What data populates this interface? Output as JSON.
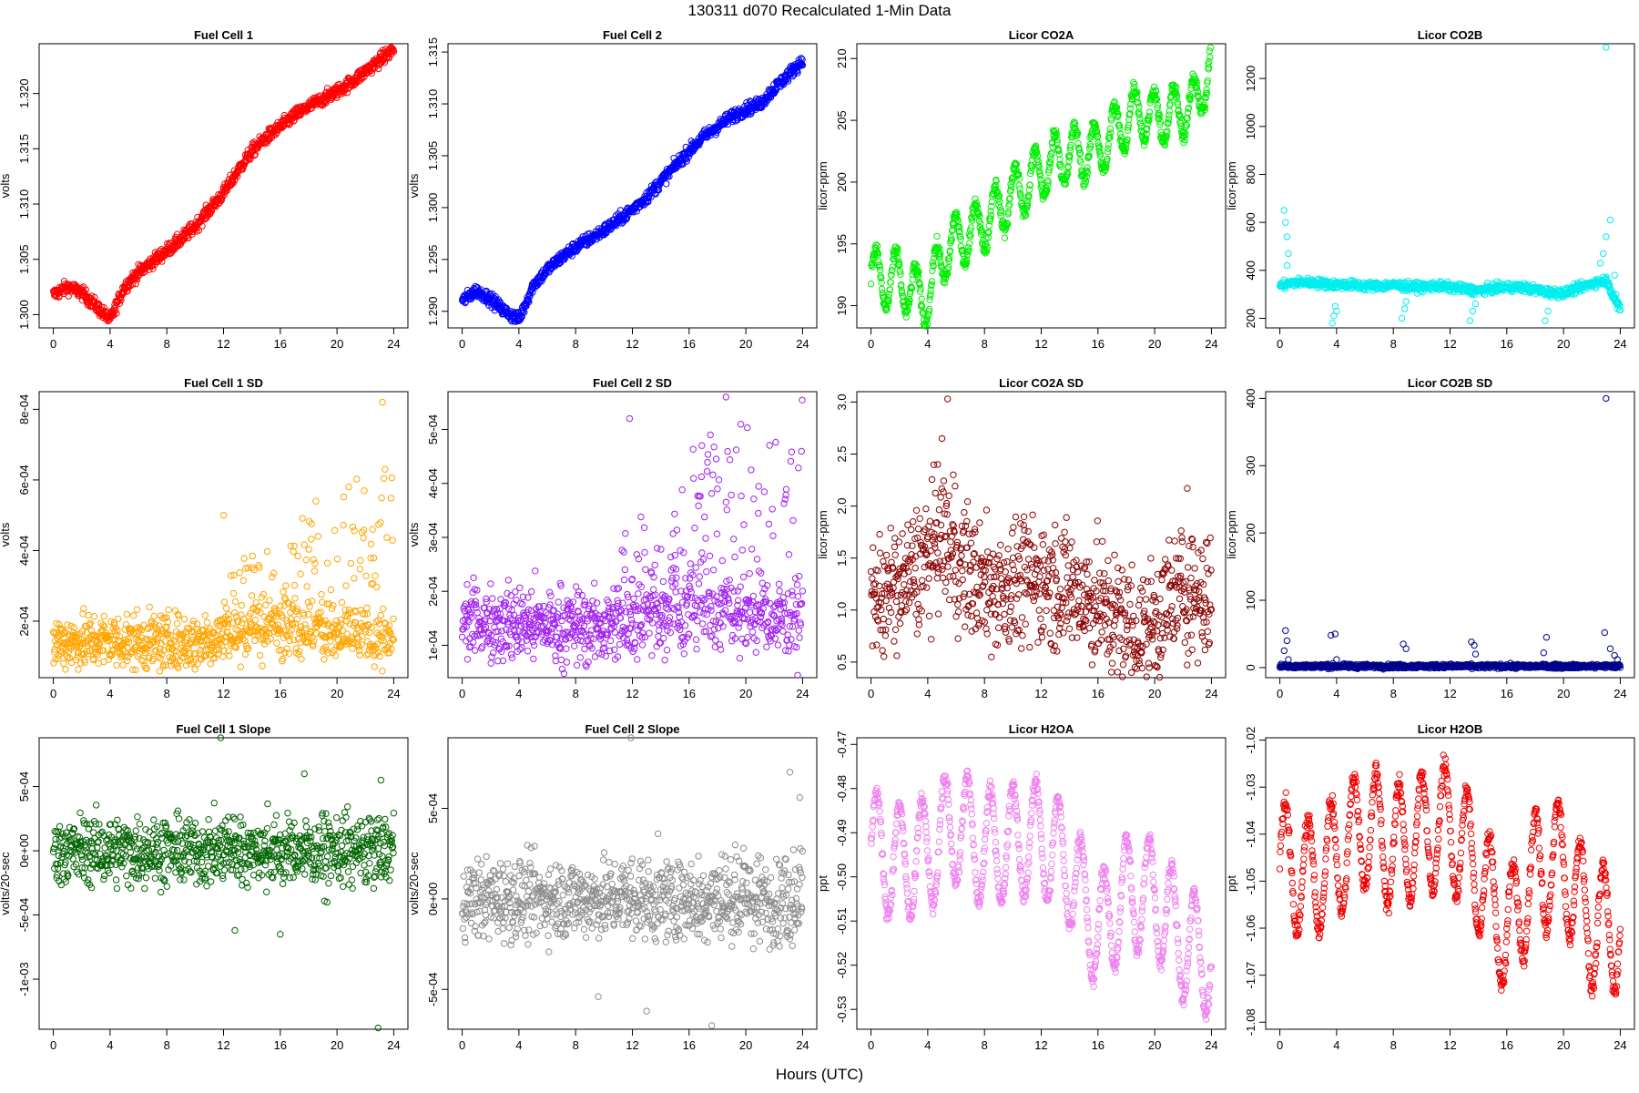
{
  "figure": {
    "title": "130311    d070    Recalculated 1-Min Data",
    "xlabel": "Hours (UTC)"
  },
  "chart_data": [
    {
      "type": "scatter",
      "title": "Fuel Cell 1",
      "xlabel": "",
      "ylabel": "volts",
      "color": "#ff0000",
      "xlim": [
        -1,
        25
      ],
      "ylim": [
        1.2988,
        1.3245
      ],
      "xticks": [
        0,
        4,
        8,
        12,
        16,
        20,
        24
      ],
      "yticks": [
        1.3,
        1.305,
        1.31,
        1.315,
        1.32
      ],
      "ytick_labels": [
        "1.300",
        "1.305",
        "1.310",
        "1.315",
        "1.320"
      ],
      "x": [
        0,
        1,
        2,
        3,
        4,
        5,
        6,
        7,
        8,
        9,
        10,
        11,
        12,
        13,
        14,
        15,
        16,
        17,
        18,
        19,
        20,
        21,
        22,
        23,
        24
      ],
      "y": [
        1.3018,
        1.3025,
        1.302,
        1.3008,
        1.2995,
        1.3025,
        1.3038,
        1.3048,
        1.3058,
        1.3068,
        1.308,
        1.3095,
        1.311,
        1.313,
        1.3148,
        1.316,
        1.317,
        1.318,
        1.3188,
        1.3195,
        1.3202,
        1.321,
        1.322,
        1.323,
        1.324
      ],
      "spread": 0.0003
    },
    {
      "type": "scatter",
      "title": "Fuel Cell 2",
      "xlabel": "",
      "ylabel": "volts",
      "color": "#0000ff",
      "xlim": [
        -1,
        25
      ],
      "ylim": [
        1.2884,
        1.3158
      ],
      "xticks": [
        0,
        4,
        8,
        12,
        16,
        20,
        24
      ],
      "yticks": [
        1.29,
        1.295,
        1.3,
        1.305,
        1.31,
        1.315
      ],
      "ytick_labels": [
        "1.290",
        "1.295",
        "1.300",
        "1.305",
        "1.310",
        "1.315"
      ],
      "x": [
        0,
        1,
        2,
        3,
        4,
        5,
        6,
        7,
        8,
        9,
        10,
        11,
        12,
        13,
        14,
        15,
        16,
        17,
        18,
        19,
        20,
        21,
        22,
        23,
        24
      ],
      "y": [
        1.291,
        1.292,
        1.2912,
        1.29,
        1.2892,
        1.2925,
        1.294,
        1.2952,
        1.2962,
        1.297,
        1.2978,
        1.2988,
        1.2998,
        1.301,
        1.3025,
        1.304,
        1.3055,
        1.3068,
        1.3078,
        1.3088,
        1.3095,
        1.31,
        1.3115,
        1.3128,
        1.3142
      ],
      "spread": 0.0003
    },
    {
      "type": "scatter",
      "title": "Licor CO2A",
      "xlabel": "",
      "ylabel": "licor-ppm",
      "color": "#00ee00",
      "xlim": [
        -1,
        25
      ],
      "ylim": [
        188.2,
        211.2
      ],
      "xticks": [
        0,
        4,
        8,
        12,
        16,
        20,
        24
      ],
      "yticks": [
        190,
        195,
        200,
        205,
        210
      ],
      "ytick_labels": [
        "190",
        "195",
        "200",
        "205",
        "210"
      ],
      "x": [
        0,
        1,
        2,
        3,
        4,
        5,
        6,
        7,
        8,
        9,
        10,
        11,
        12,
        13,
        14,
        15,
        16,
        17,
        18,
        19,
        20,
        21,
        22,
        23,
        24
      ],
      "y": [
        192.5,
        192.0,
        192.2,
        191.0,
        190.5,
        194.0,
        195.2,
        195.8,
        196.8,
        197.8,
        199.0,
        199.8,
        200.8,
        201.8,
        202.2,
        202.4,
        202.6,
        203.8,
        205.0,
        205.8,
        205.2,
        205.4,
        205.8,
        206.5,
        210.0
      ],
      "osc_amp": 2.2,
      "osc_period": 1.4,
      "spread": 0.3
    },
    {
      "type": "scatter",
      "title": "Licor CO2B",
      "xlabel": "",
      "ylabel": "licor-ppm",
      "color": "#00eeee",
      "xlim": [
        -1,
        25
      ],
      "ylim": [
        160,
        1345
      ],
      "xticks": [
        0,
        4,
        8,
        12,
        16,
        20,
        24
      ],
      "yticks": [
        200,
        400,
        600,
        800,
        1000,
        1200
      ],
      "ytick_labels": [
        "200",
        "400",
        "600",
        "800",
        "1000",
        "1200"
      ],
      "x": [
        0,
        1,
        2,
        3,
        4,
        5,
        6,
        7,
        8,
        9,
        10,
        11,
        12,
        13,
        14,
        15,
        16,
        17,
        18,
        19,
        20,
        21,
        22,
        23,
        24
      ],
      "y": [
        335,
        350,
        350,
        345,
        340,
        340,
        335,
        335,
        338,
        333,
        330,
        335,
        330,
        322,
        315,
        325,
        330,
        330,
        320,
        308,
        305,
        325,
        345,
        360,
        235
      ],
      "spread": 9,
      "extra_points": [
        [
          0.3,
          650
        ],
        [
          0.4,
          600
        ],
        [
          0.5,
          540
        ],
        [
          0.6,
          470
        ],
        [
          0.5,
          420
        ],
        [
          3.7,
          180
        ],
        [
          3.8,
          210
        ],
        [
          3.9,
          250
        ],
        [
          4.0,
          230
        ],
        [
          8.6,
          200
        ],
        [
          8.8,
          240
        ],
        [
          8.9,
          270
        ],
        [
          13.4,
          190
        ],
        [
          13.6,
          230
        ],
        [
          13.8,
          260
        ],
        [
          18.7,
          190
        ],
        [
          18.9,
          230
        ],
        [
          22.6,
          430
        ],
        [
          22.8,
          470
        ],
        [
          23.0,
          540
        ],
        [
          23.3,
          610
        ],
        [
          23.6,
          380
        ],
        [
          23.7,
          300
        ],
        [
          23.8,
          240
        ],
        [
          23.0,
          1330
        ]
      ]
    },
    {
      "type": "scatter",
      "title": "Fuel Cell 1 SD",
      "xlabel": "",
      "ylabel": "volts",
      "color": "#ffa500",
      "xlim": [
        -1,
        25
      ],
      "ylim": [
        4e-05,
        0.00085
      ],
      "xticks": [
        0,
        4,
        8,
        12,
        16,
        20,
        24
      ],
      "yticks": [
        0.0002,
        0.0004,
        0.0006,
        0.0008
      ],
      "ytick_labels": [
        "2e-04",
        "4e-04",
        "6e-04",
        "8e-04"
      ],
      "x": [
        0,
        4,
        8,
        10,
        12,
        14,
        16,
        18,
        20,
        22,
        24
      ],
      "y": [
        0.00014,
        0.000145,
        0.00014,
        0.00014,
        0.00016,
        0.00017,
        0.00018,
        0.00019,
        0.00016,
        0.00016,
        0.00015
      ],
      "spread": 4e-05,
      "tail": 0.00024,
      "tail_start": 12,
      "extra_points": [
        [
          23.2,
          0.00082
        ],
        [
          12.0,
          0.0005
        ],
        [
          18.5,
          0.00054
        ],
        [
          22.5,
          0.00046
        ]
      ]
    },
    {
      "type": "scatter",
      "title": "Fuel Cell 2 SD",
      "xlabel": "",
      "ylabel": "volts",
      "color": "#a020f0",
      "xlim": [
        -1,
        25
      ],
      "ylim": [
        4e-05,
        0.00057
      ],
      "xticks": [
        0,
        4,
        8,
        12,
        16,
        20,
        24
      ],
      "yticks": [
        0.0001,
        0.0002,
        0.0003,
        0.0004,
        0.0005
      ],
      "ytick_labels": [
        "1e-04",
        "2e-04",
        "3e-04",
        "4e-04",
        "5e-04"
      ],
      "x": [
        0,
        4,
        8,
        10,
        12,
        14,
        16,
        18,
        20,
        22,
        24
      ],
      "y": [
        0.000145,
        0.00014,
        0.000135,
        0.000135,
        0.00015,
        0.00015,
        0.00016,
        0.00017,
        0.00016,
        0.00015,
        0.00015
      ],
      "spread": 3.5e-05,
      "tail": 0.00022,
      "tail_start": 11,
      "extra_points": [
        [
          18.6,
          0.00056
        ],
        [
          11.8,
          0.00052
        ],
        [
          17.5,
          0.00049
        ],
        [
          16.9,
          0.00047
        ]
      ]
    },
    {
      "type": "scatter",
      "title": "Licor CO2A SD",
      "xlabel": "",
      "ylabel": "licor-ppm",
      "color": "#8b0000",
      "xlim": [
        -1,
        25
      ],
      "ylim": [
        0.35,
        3.1
      ],
      "xticks": [
        0,
        4,
        8,
        12,
        16,
        20,
        24
      ],
      "yticks": [
        0.5,
        1.0,
        1.5,
        2.0,
        2.5,
        3.0
      ],
      "ytick_labels": [
        "0.5",
        "1.0",
        "1.5",
        "2.0",
        "2.5",
        "3.0"
      ],
      "x": [
        0,
        2,
        4,
        5,
        6,
        8,
        10,
        12,
        14,
        16,
        18,
        19,
        20,
        22,
        24
      ],
      "y": [
        1.1,
        1.2,
        1.5,
        1.7,
        1.5,
        1.2,
        1.25,
        1.3,
        1.2,
        1.05,
        0.85,
        0.75,
        0.9,
        1.2,
        1.1
      ],
      "spread": 0.3,
      "extra_points": [
        [
          5.4,
          3.03
        ],
        [
          5.0,
          2.65
        ],
        [
          4.7,
          2.4
        ],
        [
          22.3,
          2.17
        ],
        [
          5.8,
          2.3
        ]
      ]
    },
    {
      "type": "scatter",
      "title": "Licor CO2B SD",
      "xlabel": "",
      "ylabel": "licor-ppm",
      "color": "#00008b",
      "xlim": [
        -1,
        25
      ],
      "ylim": [
        -15,
        410
      ],
      "xticks": [
        0,
        4,
        8,
        12,
        16,
        20,
        24
      ],
      "yticks": [
        0,
        100,
        200,
        300,
        400
      ],
      "ytick_labels": [
        "0",
        "100",
        "200",
        "300",
        "400"
      ],
      "x": [
        0,
        24
      ],
      "y": [
        2,
        2
      ],
      "spread": 1.5,
      "extra_points": [
        [
          0.4,
          55
        ],
        [
          0.5,
          40
        ],
        [
          0.3,
          25
        ],
        [
          0.6,
          12
        ],
        [
          3.6,
          48
        ],
        [
          3.9,
          50
        ],
        [
          4.0,
          12
        ],
        [
          8.7,
          35
        ],
        [
          8.9,
          28
        ],
        [
          13.5,
          38
        ],
        [
          13.7,
          33
        ],
        [
          13.8,
          20
        ],
        [
          18.8,
          45
        ],
        [
          18.6,
          22
        ],
        [
          22.9,
          52
        ],
        [
          23.3,
          28
        ],
        [
          23.6,
          18
        ],
        [
          23.8,
          12
        ],
        [
          23.0,
          400
        ]
      ]
    },
    {
      "type": "scatter",
      "title": "Fuel Cell 1 Slope",
      "xlabel": "",
      "ylabel": "volts/20-sec",
      "color": "#006400",
      "xlim": [
        -1,
        25
      ],
      "ylim": [
        -0.00139,
        0.00088
      ],
      "xticks": [
        0,
        4,
        8,
        12,
        16,
        20,
        24
      ],
      "yticks": [
        -0.001,
        -0.0005,
        0,
        0.0005
      ],
      "ytick_labels": [
        "-1e-03",
        "-5e-04",
        "0e+00",
        "5e-04"
      ],
      "x": [
        0,
        24
      ],
      "y": [
        0,
        0
      ],
      "spread": 0.00013,
      "tail": 0.00025,
      "tail_start": 12,
      "extra_points": [
        [
          11.8,
          0.00088
        ],
        [
          17.7,
          0.0006
        ],
        [
          23.1,
          0.00055
        ],
        [
          22.9,
          -0.00138
        ],
        [
          16.0,
          -0.00065
        ],
        [
          12.8,
          -0.00062
        ]
      ]
    },
    {
      "type": "scatter",
      "title": "Fuel Cell 2 Slope",
      "xlabel": "",
      "ylabel": "volts/20-sec",
      "color": "#8c8c8c",
      "xlim": [
        -1,
        25
      ],
      "ylim": [
        -0.00072,
        0.00089
      ],
      "xticks": [
        0,
        4,
        8,
        12,
        16,
        20,
        24
      ],
      "yticks": [
        -0.0005,
        0,
        0.0005
      ],
      "ytick_labels": [
        "-5e-04",
        "0e+00",
        "5e-04"
      ],
      "x": [
        0,
        24
      ],
      "y": [
        0,
        0
      ],
      "spread": 0.00011,
      "tail": 0.00022,
      "tail_start": 11,
      "extra_points": [
        [
          11.9,
          0.00089
        ],
        [
          23.1,
          0.0007
        ],
        [
          23.8,
          0.00056
        ],
        [
          17.6,
          -0.0007
        ],
        [
          13.0,
          -0.00062
        ],
        [
          9.6,
          -0.00054
        ]
      ]
    },
    {
      "type": "scatter",
      "title": "Licor H2OA",
      "xlabel": "",
      "ylabel": "ppt",
      "color": "#ee82ee",
      "xlim": [
        -1,
        25
      ],
      "ylim": [
        -0.5345,
        -0.4685
      ],
      "xticks": [
        0,
        4,
        8,
        12,
        16,
        20,
        24
      ],
      "yticks": [
        -0.53,
        -0.52,
        -0.51,
        -0.5,
        -0.49,
        -0.48,
        -0.47
      ],
      "ytick_labels": [
        "-0.53",
        "-0.52",
        "-0.51",
        "-0.50",
        "-0.49",
        "-0.48",
        "-0.47"
      ],
      "x": [
        0,
        2,
        4,
        6,
        8,
        10,
        12,
        14,
        16,
        18,
        20,
        22,
        24
      ],
      "y": [
        -0.493,
        -0.497,
        -0.495,
        -0.488,
        -0.494,
        -0.492,
        -0.491,
        -0.498,
        -0.513,
        -0.504,
        -0.504,
        -0.515,
        -0.519
      ],
      "osc_amp": 0.013,
      "osc_period": 1.6,
      "spread": 0.001
    },
    {
      "type": "scatter",
      "title": "Licor H2OB",
      "xlabel": "",
      "ylabel": "ppt",
      "color": "#ee0000",
      "xlim": [
        -1,
        25
      ],
      "ylim": [
        -1.0815,
        -1.0195
      ],
      "xticks": [
        0,
        4,
        8,
        12,
        16,
        20,
        24
      ],
      "yticks": [
        -1.08,
        -1.07,
        -1.06,
        -1.05,
        -1.04,
        -1.03,
        -1.02
      ],
      "ytick_labels": [
        "-1.08",
        "-1.07",
        "-1.06",
        "-1.05",
        "-1.04",
        "-1.03",
        "-1.02"
      ],
      "x": [
        0,
        2,
        4,
        6,
        8,
        10,
        12,
        14,
        16,
        18,
        20,
        22,
        24
      ],
      "y": [
        -1.045,
        -1.05,
        -1.045,
        -1.038,
        -1.043,
        -1.04,
        -1.038,
        -1.048,
        -1.062,
        -1.048,
        -1.046,
        -1.06,
        -1.06
      ],
      "osc_amp": 0.013,
      "osc_period": 1.6,
      "spread": 0.001
    }
  ]
}
